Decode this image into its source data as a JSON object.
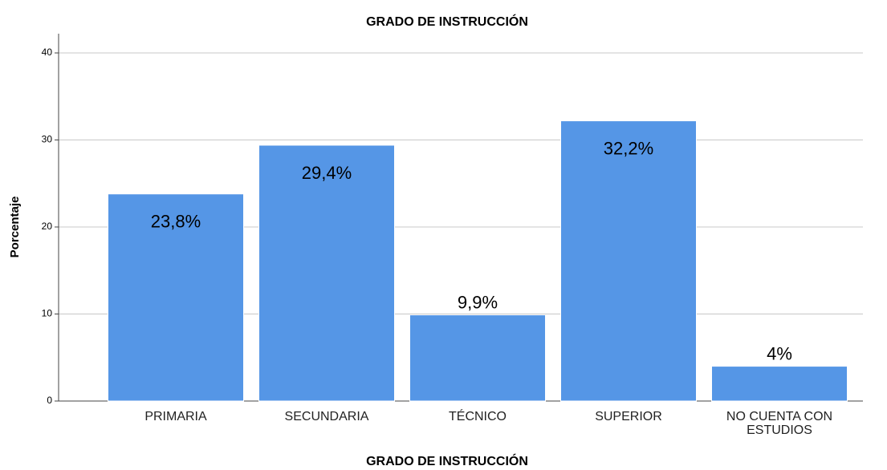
{
  "chart_data": {
    "type": "bar",
    "title": "GRADO DE INSTRUCCIÓN",
    "x_label": "GRADO DE INSTRUCCIÓN",
    "y_label": "Porcentaje",
    "categories": [
      "PRIMARIA",
      "SECUNDARIA",
      "TÉCNICO",
      "SUPERIOR",
      "NO CUENTA CON ESTUDIOS"
    ],
    "values": [
      23.8,
      29.4,
      9.9,
      32.2,
      4
    ],
    "value_labels": [
      "23,8%",
      "29,4%",
      "9,9%",
      "32,2%",
      "4%"
    ],
    "color": "#5596e6",
    "ylim": [
      0,
      40
    ],
    "yticks": [
      0,
      10,
      20,
      30,
      40
    ],
    "grid": true
  }
}
